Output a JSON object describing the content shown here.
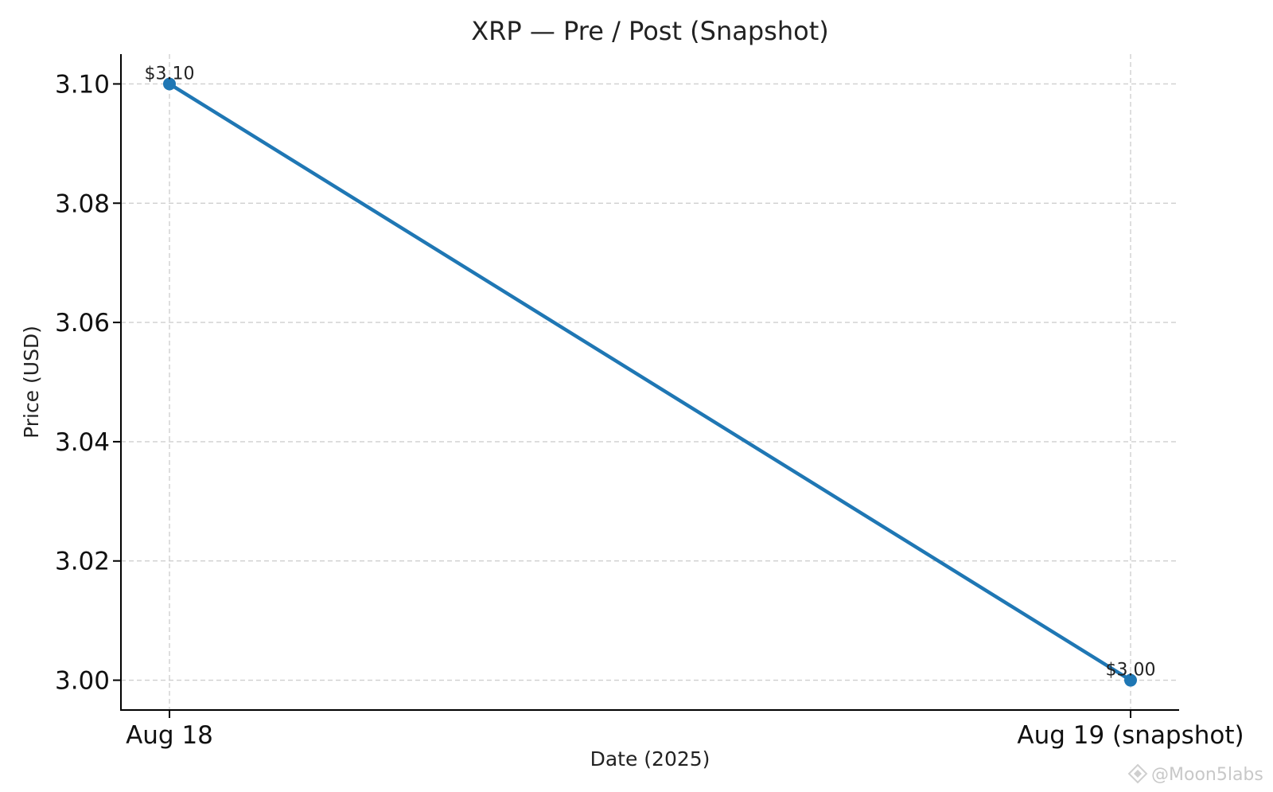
{
  "watermark": "@Moon5labs",
  "chart_data": {
    "type": "line",
    "title": "XRP — Pre / Post (Snapshot)",
    "xlabel": "Date (2025)",
    "ylabel": "Price (USD)",
    "categories": [
      "Aug 18",
      "Aug 19 (snapshot)"
    ],
    "series": [
      {
        "values": [
          3.1,
          3.0
        ],
        "data_labels": [
          "$3.10",
          "$3.00"
        ],
        "color": "#1f77b4"
      }
    ],
    "ylim": [
      2.995,
      3.105
    ],
    "yticks": [
      3.0,
      3.02,
      3.04,
      3.06,
      3.08,
      3.1
    ],
    "ytick_labels": [
      "3.00",
      "3.02",
      "3.04",
      "3.06",
      "3.08",
      "3.10"
    ],
    "grid": true,
    "legend": "none"
  }
}
